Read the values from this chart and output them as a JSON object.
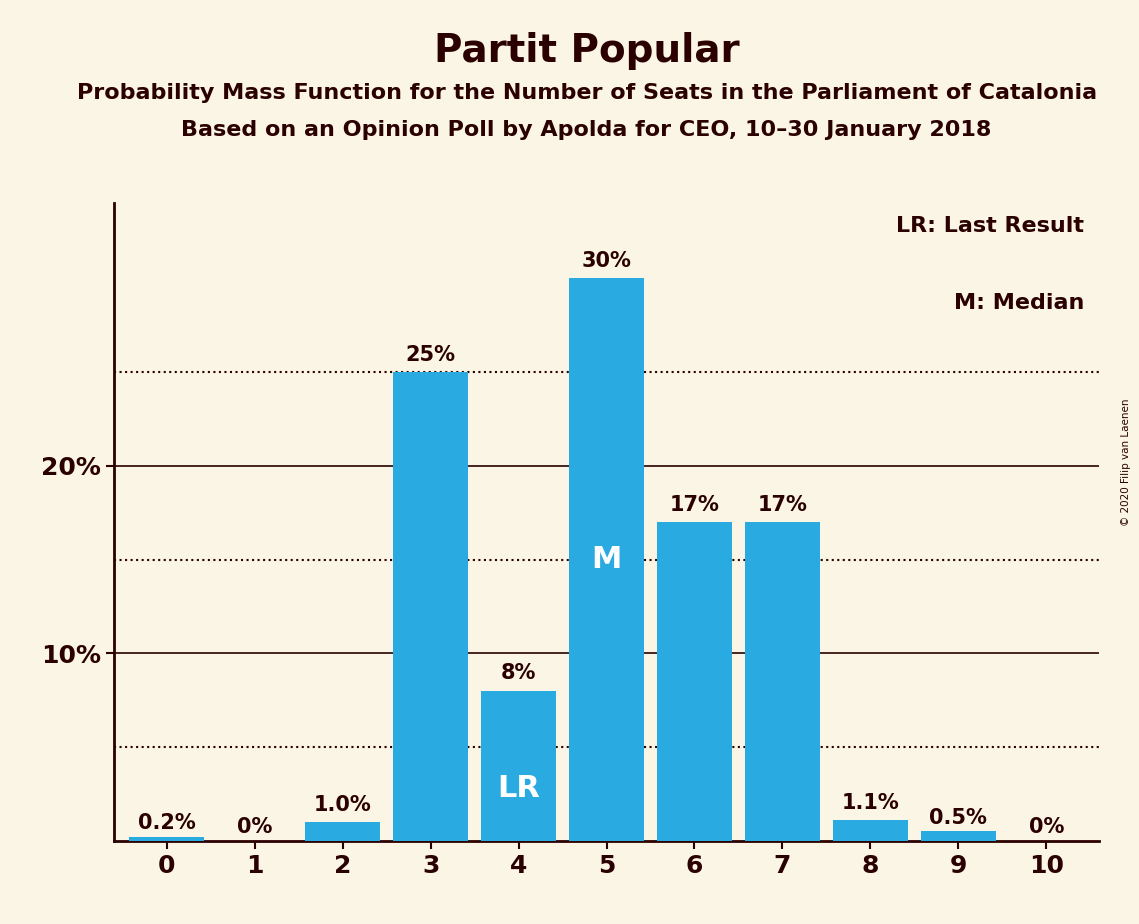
{
  "title": "Partit Popular",
  "subtitle1": "Probability Mass Function for the Number of Seats in the Parliament of Catalonia",
  "subtitle2": "Based on an Opinion Poll by Apolda for CEO, 10–30 January 2018",
  "copyright": "© 2020 Filip van Laenen",
  "categories": [
    0,
    1,
    2,
    3,
    4,
    5,
    6,
    7,
    8,
    9,
    10
  ],
  "values": [
    0.2,
    0.0,
    1.0,
    25.0,
    8.0,
    30.0,
    17.0,
    17.0,
    1.1,
    0.5,
    0.0
  ],
  "bar_color": "#29ABE2",
  "background_color": "#FAF5E4",
  "axis_color": "#2B0000",
  "bar_labels": [
    "0.2%",
    "0%",
    "1.0%",
    "25%",
    "8%",
    "30%",
    "17%",
    "17%",
    "1.1%",
    "0.5%",
    "0%"
  ],
  "lr_bar": 4,
  "median_bar": 5,
  "yticks": [
    10,
    20
  ],
  "solid_lines": [
    10,
    20
  ],
  "dotted_lines": [
    5,
    15,
    25
  ],
  "ylim": [
    0,
    34
  ],
  "legend_lr": "LR: Last Result",
  "legend_m": "M: Median",
  "title_fontsize": 28,
  "subtitle_fontsize": 16,
  "tick_fontsize": 18,
  "ylabel_fontsize": 18,
  "bar_label_fontsize": 15,
  "bar_label_inside_fontsize": 22
}
